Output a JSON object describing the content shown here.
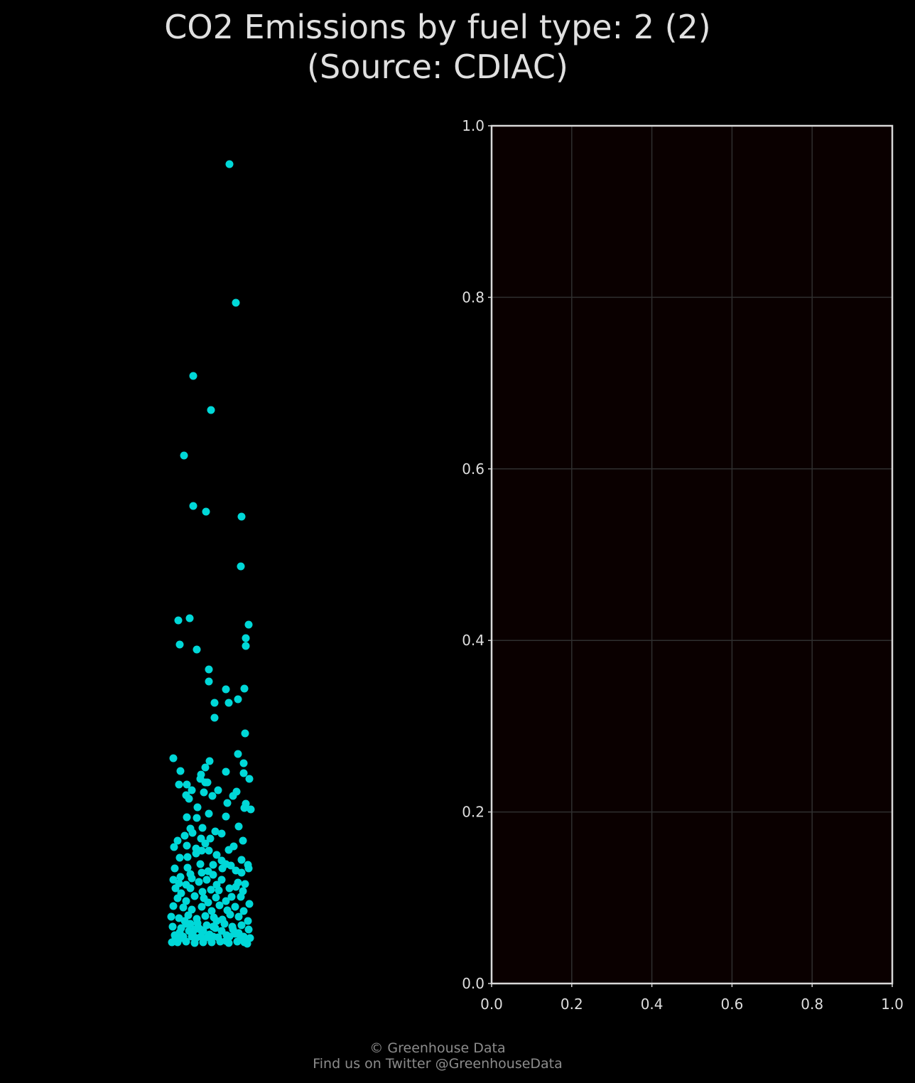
{
  "chart_data": {
    "title_line1": "CO2 Emissions by fuel type: 2 (2)",
    "title_line2": "(Source: CDIAC)",
    "strip": {
      "type": "scatter",
      "color": "#00d8d8",
      "points": [
        [
          323,
          231
        ],
        [
          332,
          426
        ],
        [
          272,
          529
        ],
        [
          297,
          577
        ],
        [
          259,
          641
        ],
        [
          272,
          712
        ],
        [
          290,
          720
        ],
        [
          340,
          727
        ],
        [
          339,
          797
        ],
        [
          251,
          873
        ],
        [
          267,
          870
        ],
        [
          350,
          879
        ],
        [
          346,
          898
        ],
        [
          346,
          909
        ],
        [
          253,
          907
        ],
        [
          277,
          914
        ],
        [
          294,
          942
        ],
        [
          294,
          959
        ],
        [
          318,
          970
        ],
        [
          344,
          969
        ],
        [
          302,
          989
        ],
        [
          322,
          989
        ],
        [
          335,
          984
        ],
        [
          302,
          1010
        ],
        [
          345,
          1032
        ],
        [
          244,
          1067
        ],
        [
          335,
          1061
        ],
        [
          295,
          1071
        ],
        [
          343,
          1074
        ],
        [
          289,
          1080
        ],
        [
          254,
          1085
        ],
        [
          283,
          1090
        ],
        [
          318,
          1086
        ],
        [
          343,
          1088
        ],
        [
          351,
          1096
        ],
        [
          289,
          1101
        ],
        [
          252,
          1104
        ],
        [
          263,
          1104
        ],
        [
          282,
          1096
        ],
        [
          292,
          1101
        ],
        [
          333,
          1114
        ],
        [
          307,
          1112
        ],
        [
          270,
          1112
        ],
        [
          287,
          1115
        ],
        [
          328,
          1120
        ],
        [
          262,
          1119
        ],
        [
          299,
          1120
        ],
        [
          266,
          1124
        ],
        [
          320,
          1130
        ],
        [
          346,
          1131
        ],
        [
          278,
          1136
        ],
        [
          344,
          1137
        ],
        [
          353,
          1139
        ],
        [
          294,
          1145
        ],
        [
          263,
          1150
        ],
        [
          277,
          1151
        ],
        [
          318,
          1149
        ],
        [
          336,
          1163
        ],
        [
          268,
          1166
        ],
        [
          285,
          1165
        ],
        [
          303,
          1170
        ],
        [
          312,
          1173
        ],
        [
          260,
          1176
        ],
        [
          271,
          1172
        ],
        [
          283,
          1180
        ],
        [
          296,
          1180
        ],
        [
          342,
          1183
        ],
        [
          250,
          1183
        ],
        [
          245,
          1192
        ],
        [
          263,
          1190
        ],
        [
          289,
          1187
        ],
        [
          329,
          1191
        ],
        [
          276,
          1194
        ],
        [
          284,
          1197
        ],
        [
          322,
          1196
        ],
        [
          294,
          1197
        ],
        [
          253,
          1207
        ],
        [
          264,
          1206
        ],
        [
          276,
          1201
        ],
        [
          305,
          1203
        ],
        [
          312,
          1211
        ],
        [
          340,
          1210
        ],
        [
          349,
          1217
        ],
        [
          264,
          1221
        ],
        [
          246,
          1222
        ],
        [
          300,
          1217
        ],
        [
          282,
          1216
        ],
        [
          318,
          1216
        ],
        [
          268,
          1230
        ],
        [
          284,
          1228
        ],
        [
          293,
          1226
        ],
        [
          300,
          1231
        ],
        [
          313,
          1222
        ],
        [
          325,
          1218
        ],
        [
          332,
          1225
        ],
        [
          340,
          1228
        ],
        [
          350,
          1222
        ],
        [
          254,
          1234
        ],
        [
          270,
          1236
        ],
        [
          244,
          1238
        ],
        [
          252,
          1243
        ],
        [
          262,
          1245
        ],
        [
          280,
          1241
        ],
        [
          291,
          1238
        ],
        [
          305,
          1245
        ],
        [
          312,
          1238
        ],
        [
          335,
          1242
        ],
        [
          345,
          1244
        ],
        [
          247,
          1250
        ],
        [
          255,
          1257
        ],
        [
          268,
          1250
        ],
        [
          285,
          1255
        ],
        [
          297,
          1252
        ],
        [
          308,
          1253
        ],
        [
          323,
          1250
        ],
        [
          332,
          1248
        ],
        [
          342,
          1254
        ],
        [
          250,
          1264
        ],
        [
          262,
          1268
        ],
        [
          274,
          1261
        ],
        [
          287,
          1264
        ],
        [
          293,
          1270
        ],
        [
          304,
          1263
        ],
        [
          318,
          1268
        ],
        [
          326,
          1262
        ],
        [
          339,
          1262
        ],
        [
          351,
          1272
        ],
        [
          244,
          1275
        ],
        [
          258,
          1277
        ],
        [
          270,
          1280
        ],
        [
          284,
          1276
        ],
        [
          298,
          1282
        ],
        [
          309,
          1274
        ],
        [
          320,
          1281
        ],
        [
          331,
          1276
        ],
        [
          343,
          1282
        ],
        [
          241,
          1290
        ],
        [
          252,
          1292
        ],
        [
          265,
          1288
        ],
        [
          277,
          1293
        ],
        [
          289,
          1289
        ],
        [
          301,
          1291
        ],
        [
          313,
          1294
        ],
        [
          324,
          1287
        ],
        [
          336,
          1290
        ],
        [
          349,
          1296
        ],
        [
          243,
          1304
        ],
        [
          255,
          1306
        ],
        [
          267,
          1300
        ],
        [
          279,
          1305
        ],
        [
          291,
          1302
        ],
        [
          303,
          1306
        ],
        [
          316,
          1300
        ],
        [
          327,
          1304
        ],
        [
          340,
          1302
        ],
        [
          350,
          1308
        ],
        [
          246,
          1316
        ],
        [
          258,
          1318
        ],
        [
          271,
          1314
        ],
        [
          283,
          1318
        ],
        [
          295,
          1315
        ],
        [
          307,
          1319
        ],
        [
          319,
          1316
        ],
        [
          331,
          1314
        ],
        [
          343,
          1318
        ],
        [
          352,
          1320
        ],
        [
          242,
          1326
        ],
        [
          250,
          1326
        ],
        [
          262,
          1325
        ],
        [
          274,
          1327
        ],
        [
          286,
          1326
        ],
        [
          298,
          1326
        ],
        [
          310,
          1325
        ],
        [
          322,
          1327
        ],
        [
          334,
          1325
        ],
        [
          348,
          1328
        ],
        [
          268,
          1300
        ],
        [
          274,
          1308
        ],
        [
          266,
          1310
        ],
        [
          278,
          1299
        ],
        [
          270,
          1318
        ],
        [
          300,
          1318
        ],
        [
          312,
          1310
        ],
        [
          323,
          1318
        ],
        [
          336,
          1313
        ],
        [
          260,
          1296
        ],
        [
          305,
          1296
        ],
        [
          328,
          1308
        ],
        [
          286,
          1310
        ],
        [
          292,
          1319
        ],
        [
          282,
          1308
        ],
        [
          253,
          1312
        ],
        [
          247,
          1320
        ],
        [
          338,
          1322
        ],
        [
          344,
          1326
        ],
        [
          318,
          1324
        ],
        [
          256,
          1320
        ],
        [
          262,
          1300
        ],
        [
          276,
          1320
        ],
        [
          300,
          1304
        ]
      ]
    },
    "panel": {
      "type": "scatter",
      "xlim": [
        0.0,
        1.0
      ],
      "ylim": [
        0.0,
        1.0
      ],
      "xticks": [
        "0.0",
        "0.2",
        "0.4",
        "0.6",
        "0.8",
        "1.0"
      ],
      "yticks": [
        "0.0",
        "0.2",
        "0.4",
        "0.6",
        "0.8",
        "1.0"
      ],
      "grid": true,
      "background": "#0a0000",
      "axis_color": "#d8d8d8",
      "grid_color": "#2f2f2f",
      "points": []
    }
  },
  "footer": {
    "line1": "© Greenhouse Data",
    "line2": "Find us on Twitter @GreenhouseData"
  }
}
